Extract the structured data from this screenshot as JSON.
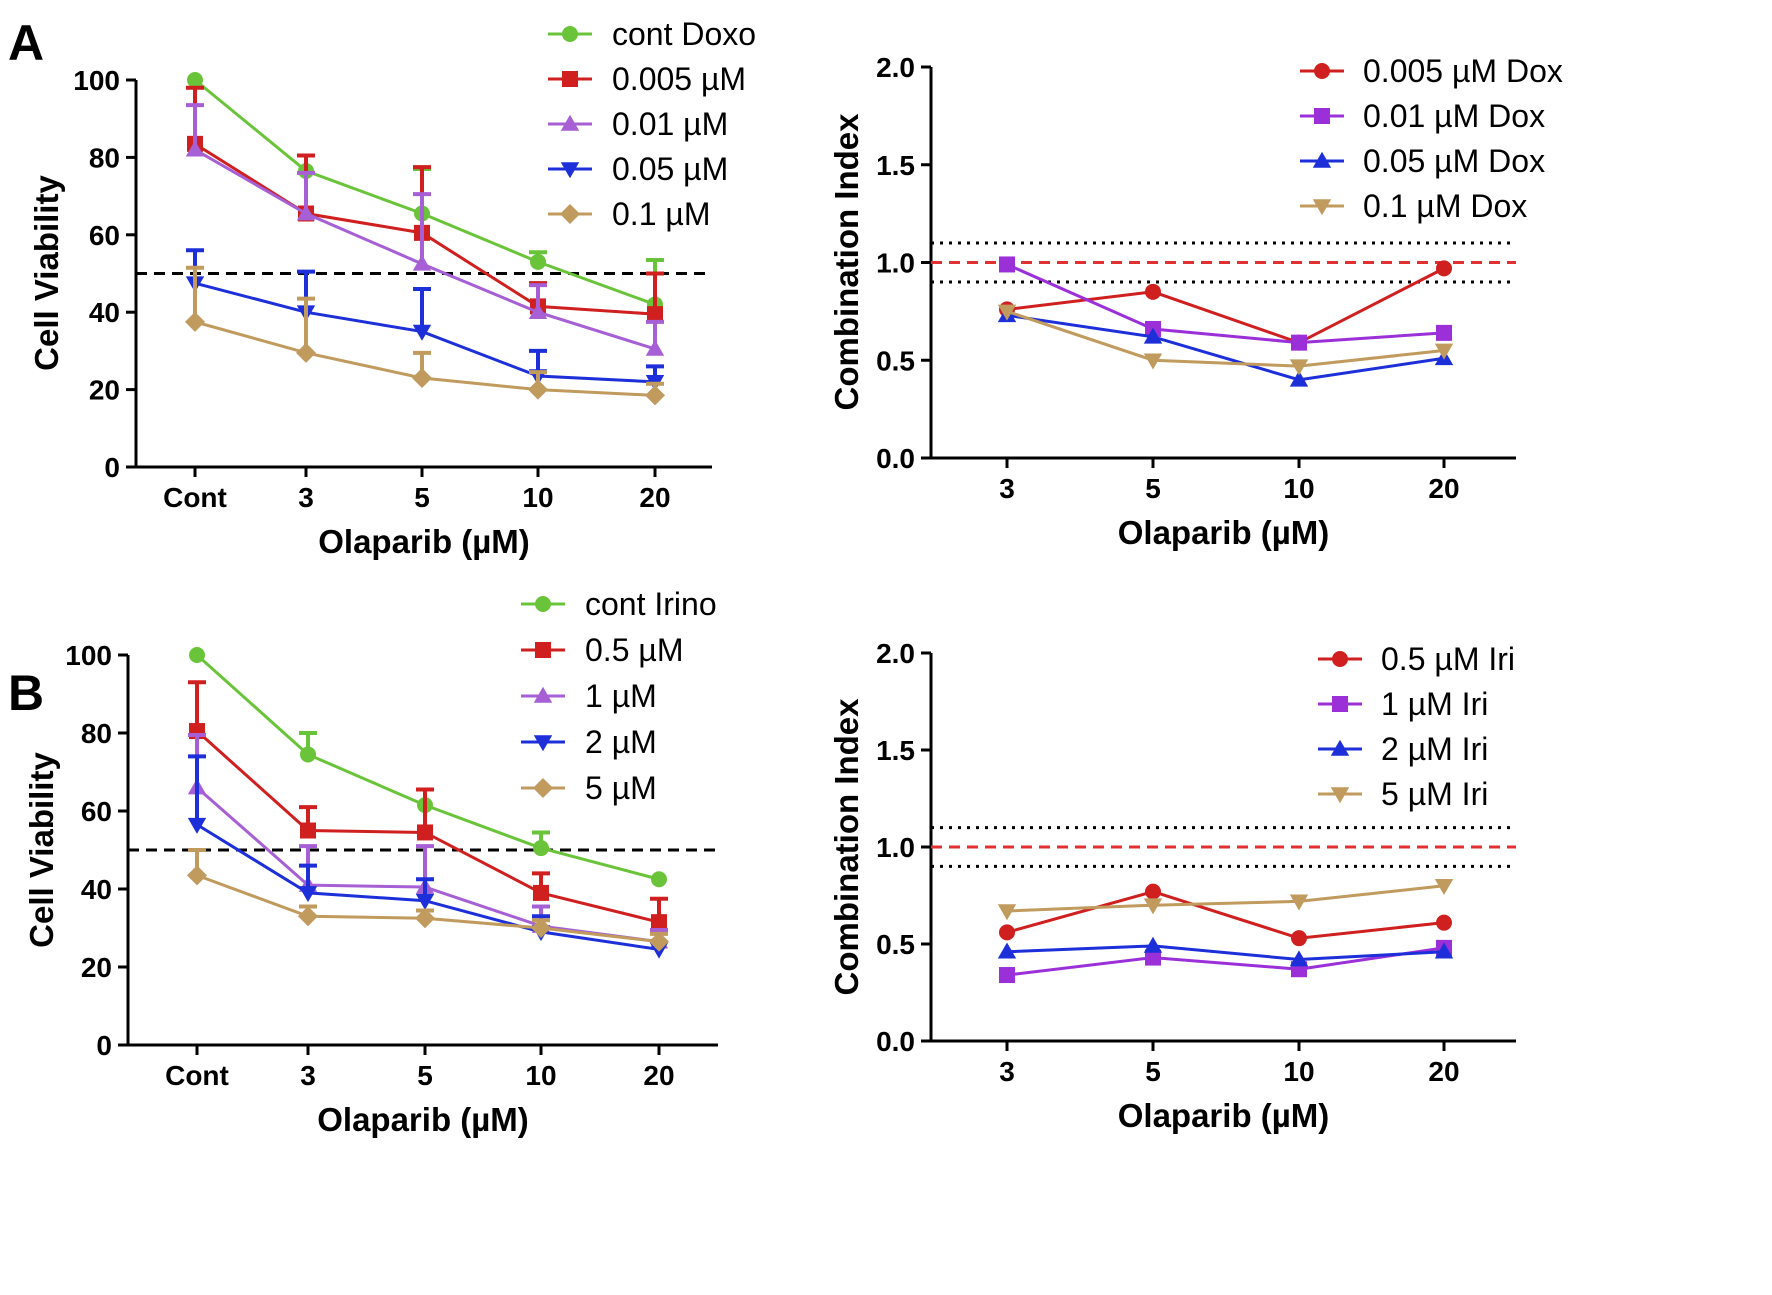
{
  "panels": [
    {
      "label": "A"
    },
    {
      "label": "B"
    }
  ],
  "chart_data": [
    {
      "type": "line",
      "panel": "A",
      "title": "",
      "xlabel": "Olaparib (µM)",
      "ylabel": "Cell Viability",
      "categories": [
        "Cont",
        "3",
        "5",
        "10",
        "20"
      ],
      "ylim": [
        0,
        100
      ],
      "yticks": [
        0,
        20,
        40,
        60,
        80,
        100
      ],
      "grid": false,
      "legend_position": "top-right",
      "reference_lines": [
        {
          "y": 50,
          "style": "dashed",
          "color": "#000000"
        }
      ],
      "series": [
        {
          "name": "cont Doxo",
          "color": "#6ac43a",
          "marker": "circle",
          "values": [
            100,
            76.5,
            65.5,
            53,
            42
          ],
          "errors": [
            0,
            4,
            11.5,
            2.5,
            11.5
          ]
        },
        {
          "name": "0.005 µM",
          "color": "#cf1f1f",
          "marker": "square",
          "values": [
            83.5,
            65.5,
            60.5,
            41.5,
            39.5
          ],
          "errors": [
            14.5,
            15,
            17,
            6,
            10.5
          ]
        },
        {
          "name": "0.01 µM",
          "color": "#a65fd4",
          "marker": "triangle",
          "values": [
            82,
            65.5,
            52.5,
            40,
            30.5
          ],
          "errors": [
            11.5,
            10.5,
            18,
            7,
            7
          ]
        },
        {
          "name": "0.05 µM",
          "color": "#1c2fd8",
          "marker": "tri-down",
          "values": [
            47.5,
            40,
            35,
            23.5,
            22
          ],
          "errors": [
            8.5,
            10.5,
            11,
            6.5,
            4
          ]
        },
        {
          "name": "0.1 µM",
          "color": "#c19a5e",
          "marker": "diamond",
          "values": [
            37.5,
            29.5,
            23,
            20,
            18.5
          ],
          "errors": [
            14,
            14,
            6.5,
            4.5,
            3
          ]
        }
      ]
    },
    {
      "type": "line",
      "panel": "A",
      "title": "",
      "xlabel": "Olaparib (µM)",
      "ylabel": "Combination Index",
      "categories": [
        "3",
        "5",
        "10",
        "20"
      ],
      "ylim": [
        0,
        2.0
      ],
      "yticks": [
        "0.0",
        "0.5",
        "1.0",
        "1.5",
        "2.0"
      ],
      "grid": false,
      "legend_position": "top-right",
      "reference_lines": [
        {
          "y": 1.0,
          "style": "dashed",
          "color": "#e03030"
        },
        {
          "y": 1.1,
          "style": "dotted",
          "color": "#000000"
        },
        {
          "y": 0.9,
          "style": "dotted",
          "color": "#000000"
        }
      ],
      "series": [
        {
          "name": "0.005 µM Dox",
          "color": "#cf1f1f",
          "marker": "circle",
          "values": [
            0.76,
            0.85,
            0.59,
            0.97
          ]
        },
        {
          "name": "0.01 µM Dox",
          "color": "#9b30d9",
          "marker": "square",
          "values": [
            0.99,
            0.66,
            0.59,
            0.64
          ]
        },
        {
          "name": "0.05 µM Dox",
          "color": "#1c2fd8",
          "marker": "triangle",
          "values": [
            0.73,
            0.62,
            0.4,
            0.51
          ]
        },
        {
          "name": "0.1 µM Dox",
          "color": "#c19a5e",
          "marker": "tri-down",
          "values": [
            0.75,
            0.5,
            0.47,
            0.55
          ]
        }
      ]
    },
    {
      "type": "line",
      "panel": "B",
      "title": "",
      "xlabel": "Olaparib (µM)",
      "ylabel": "Cell Viability",
      "categories": [
        "Cont",
        "3",
        "5",
        "10",
        "20"
      ],
      "ylim": [
        0,
        100
      ],
      "yticks": [
        0,
        20,
        40,
        60,
        80,
        100
      ],
      "grid": false,
      "legend_position": "top-right",
      "reference_lines": [
        {
          "y": 50,
          "style": "dashed",
          "color": "#000000"
        }
      ],
      "series": [
        {
          "name": "cont Irino",
          "color": "#6ac43a",
          "marker": "circle",
          "values": [
            100,
            74.5,
            61.5,
            50.5,
            42.5
          ],
          "errors": [
            0,
            5.5,
            0,
            4,
            0
          ]
        },
        {
          "name": "0.5 µM",
          "color": "#cf1f1f",
          "marker": "square",
          "values": [
            80.5,
            55,
            54.5,
            39,
            31.5
          ],
          "errors": [
            12.5,
            6,
            11,
            5,
            6
          ]
        },
        {
          "name": "1 µM",
          "color": "#a65fd4",
          "marker": "triangle",
          "values": [
            66,
            41,
            40.5,
            30.5,
            26.5
          ],
          "errors": [
            13.5,
            10,
            10.5,
            5,
            3
          ]
        },
        {
          "name": "2 µM",
          "color": "#1c2fd8",
          "marker": "tri-down",
          "values": [
            56.5,
            39,
            37,
            29,
            24.5
          ],
          "errors": [
            17.5,
            7,
            5.5,
            4,
            0
          ]
        },
        {
          "name": "5 µM",
          "color": "#c19a5e",
          "marker": "diamond",
          "values": [
            43.5,
            33,
            32.5,
            30,
            26.5
          ],
          "errors": [
            6.5,
            2.5,
            2,
            2,
            2
          ]
        }
      ]
    },
    {
      "type": "line",
      "panel": "B",
      "title": "",
      "xlabel": "Olaparib (µM)",
      "ylabel": "Combination Index",
      "categories": [
        "3",
        "5",
        "10",
        "20"
      ],
      "ylim": [
        0,
        2.0
      ],
      "yticks": [
        "0.0",
        "0.5",
        "1.0",
        "1.5",
        "2.0"
      ],
      "grid": false,
      "legend_position": "top-right",
      "reference_lines": [
        {
          "y": 1.0,
          "style": "dashed",
          "color": "#e03030"
        },
        {
          "y": 1.1,
          "style": "dotted",
          "color": "#000000"
        },
        {
          "y": 0.9,
          "style": "dotted",
          "color": "#000000"
        }
      ],
      "series": [
        {
          "name": "0.5 µM Iri",
          "color": "#cf1f1f",
          "marker": "circle",
          "values": [
            0.56,
            0.77,
            0.53,
            0.61
          ]
        },
        {
          "name": "1 µM Iri",
          "color": "#9b30d9",
          "marker": "square",
          "values": [
            0.34,
            0.43,
            0.37,
            0.48
          ]
        },
        {
          "name": "2 µM Iri",
          "color": "#1c2fd8",
          "marker": "triangle",
          "values": [
            0.46,
            0.49,
            0.42,
            0.46
          ]
        },
        {
          "name": "5 µM Iri",
          "color": "#c19a5e",
          "marker": "tri-down",
          "values": [
            0.67,
            0.7,
            0.72,
            0.8
          ]
        }
      ]
    }
  ]
}
